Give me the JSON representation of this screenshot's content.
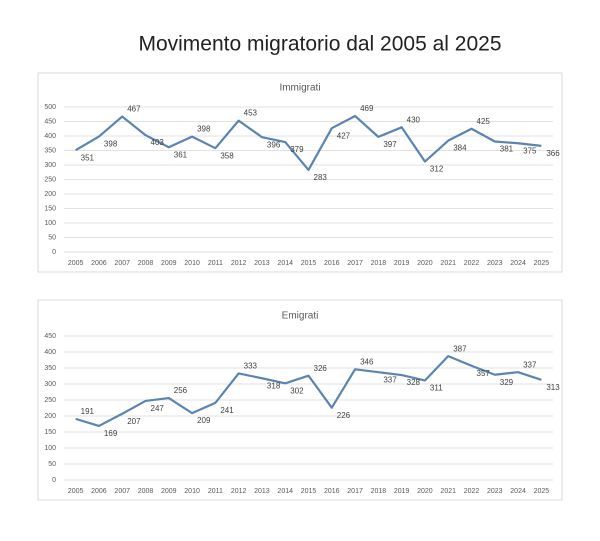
{
  "title": "Movimento migratorio dal 2005 al 2025",
  "chart_data": [
    {
      "type": "line",
      "title": "Immigrati",
      "color": "#5b84b1",
      "grid": true,
      "categories": [
        "2005",
        "2006",
        "2007",
        "2008",
        "2009",
        "2010",
        "2011",
        "2012",
        "2013",
        "2014",
        "2015",
        "2016",
        "2017",
        "2018",
        "2019",
        "2020",
        "2021",
        "2022",
        "2023",
        "2024",
        "2025"
      ],
      "values": [
        351,
        398,
        467,
        403,
        361,
        398,
        358,
        453,
        396,
        379,
        283,
        427,
        469,
        397,
        430,
        312,
        384,
        425,
        381,
        375,
        366
      ],
      "ylim": [
        0,
        500
      ],
      "yticks": [
        0,
        50,
        100,
        150,
        200,
        250,
        300,
        350,
        400,
        450,
        500
      ]
    },
    {
      "type": "line",
      "title": "Emigrati",
      "color": "#5b84b1",
      "grid": true,
      "categories": [
        "2005",
        "2006",
        "2007",
        "2008",
        "2009",
        "2010",
        "2011",
        "2012",
        "2013",
        "2014",
        "2015",
        "2016",
        "2017",
        "2018",
        "2019",
        "2020",
        "2021",
        "2022",
        "2023",
        "2024",
        "2025"
      ],
      "values": [
        191,
        169,
        207,
        247,
        256,
        209,
        241,
        333,
        318,
        302,
        326,
        226,
        346,
        337,
        328,
        311,
        387,
        357,
        329,
        337,
        313
      ],
      "ylim": [
        0,
        450
      ],
      "yticks": [
        0,
        50,
        100,
        150,
        200,
        250,
        300,
        350,
        400,
        450
      ]
    }
  ]
}
